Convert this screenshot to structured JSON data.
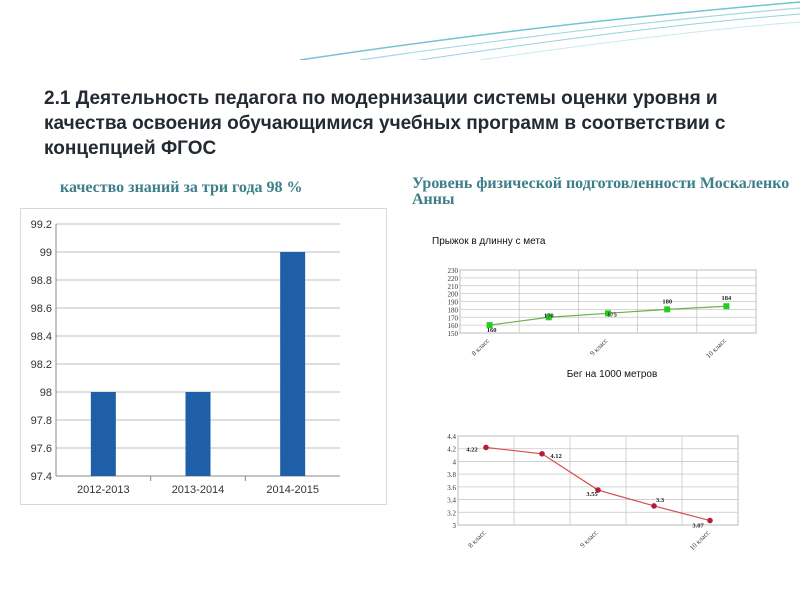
{
  "slide": {
    "title": "2.1 Деятельность педагога по модернизации системы оценки уровня и качества освоения обучающимися учебных программ в соответствии с концепцией ФГОС",
    "left_subtitle": "качество знаний за три года  98 %",
    "right_subtitle": "Уровень физической подготовленности Москаленко Анны"
  },
  "colors": {
    "title": "#232a34",
    "subtitle": "#3c7f88",
    "bar": "#1f5fa8",
    "long_jump_line": "#6ab04c",
    "long_jump_marker": "#22cc22",
    "run_line": "#d94b4b",
    "run_marker": "#b0203a",
    "deco_wave": "#4fb6c8"
  },
  "chart_data": [
    {
      "type": "bar",
      "title": "",
      "categories": [
        "2012-2013",
        "2013-2014",
        "2014-2015"
      ],
      "values": [
        98,
        98,
        99
      ],
      "ylim": [
        97.4,
        99.2
      ],
      "yticks": [
        "97.4",
        "97.6",
        "97.8",
        "98",
        "98.2",
        "98.4",
        "98.6",
        "98.8",
        "99",
        "99.2"
      ],
      "grid": true,
      "legend": "none"
    },
    {
      "type": "line",
      "title": "Прыжок в длинну с мета",
      "xlabel": "Бег на 1000 метров",
      "categories": [
        "8 класс",
        "",
        "9 класс",
        "",
        "10 класс"
      ],
      "category_labels_shown": [
        "8 класс",
        "9 класс",
        "10 класс"
      ],
      "values": [
        160,
        170,
        175,
        180,
        184
      ],
      "data_labels": [
        "160",
        "170",
        "175",
        "180",
        "184"
      ],
      "ylim": [
        150,
        230
      ],
      "yticks": [
        "150",
        "160",
        "170",
        "180",
        "190",
        "200",
        "210",
        "220",
        "230"
      ],
      "grid": true
    },
    {
      "type": "line",
      "title": "",
      "categories": [
        "8 класс",
        "",
        "9 класс",
        "",
        "10 класс"
      ],
      "category_labels_shown": [
        "8 класс",
        "9 класс",
        "10 класс"
      ],
      "values": [
        4.22,
        4.12,
        3.55,
        3.3,
        3.07
      ],
      "data_labels": [
        "4.22",
        "4.12",
        "3.55",
        "3.3",
        "3.07"
      ],
      "ylim": [
        3,
        4.4
      ],
      "yticks": [
        "3",
        "3.2",
        "3.4",
        "3.6",
        "3.8",
        "4",
        "4.2",
        "4.4"
      ],
      "grid": true
    }
  ]
}
